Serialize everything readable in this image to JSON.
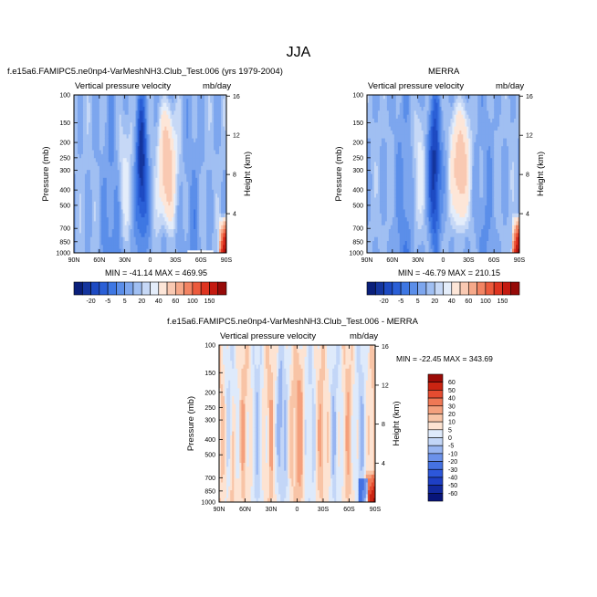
{
  "figure_title": "JJA",
  "panels": [
    {
      "title": "f.e15a6.FAMIPC5.ne0np4-VarMeshNH3.Club_Test.006 (yrs 1979-2004)",
      "left_label": "Vertical pressure velocity",
      "right_label": "mb/day",
      "ylabel": "Pressure (mb)",
      "y2label": "Height (km)",
      "minmax": "MIN = -41.14  MAX = 469.95"
    },
    {
      "title": "MERRA",
      "left_label": "Vertical pressure velocity",
      "right_label": "mb/day",
      "ylabel": "Pressure (mb)",
      "y2label": "Height (km)",
      "minmax": "MIN = -46.79  MAX = 210.15"
    },
    {
      "title": "f.e15a6.FAMIPC5.ne0np4-VarMeshNH3.Club_Test.006 - MERRA",
      "left_label": "Vertical pressure velocity",
      "right_label": "mb/day",
      "ylabel": "Pressure (mb)",
      "y2label": "Height (km)",
      "minmax": "MIN = -22.45  MAX = 343.69"
    }
  ],
  "chart_data": [
    {
      "type": "heatmap",
      "title": "f.e15a6.FAMIPC5.ne0np4-VarMeshNH3.Club_Test.006 (yrs 1979-2004)",
      "xlabel": "",
      "ylabel": "Pressure (mb)",
      "y2label": "Height (km)",
      "x_ticks": [
        "90N",
        "60N",
        "30N",
        "0",
        "30S",
        "60S",
        "90S"
      ],
      "y_ticks": [
        100,
        150,
        200,
        250,
        300,
        400,
        500,
        700,
        850,
        1000
      ],
      "y2_ticks": [
        4,
        8,
        12,
        16
      ],
      "y_log_scale": true,
      "ylim": [
        1000,
        100
      ],
      "xlim": [
        90,
        -90
      ],
      "min": -41.14,
      "max": 469.95,
      "colorbar": {
        "orientation": "horizontal",
        "labels": [
          "-20",
          "-5",
          "5",
          "20",
          "40",
          "60",
          "100",
          "150"
        ]
      }
    },
    {
      "type": "heatmap",
      "title": "MERRA",
      "xlabel": "",
      "ylabel": "Pressure (mb)",
      "y2label": "Height (km)",
      "x_ticks": [
        "90N",
        "60N",
        "30N",
        "0",
        "30S",
        "60S",
        "90S"
      ],
      "y_ticks": [
        100,
        150,
        200,
        250,
        300,
        400,
        500,
        700,
        850,
        1000
      ],
      "y2_ticks": [
        4,
        8,
        12,
        16
      ],
      "y_log_scale": true,
      "ylim": [
        1000,
        100
      ],
      "xlim": [
        90,
        -90
      ],
      "min": -46.79,
      "max": 210.15,
      "colorbar": {
        "orientation": "horizontal",
        "labels": [
          "-20",
          "-5",
          "5",
          "20",
          "40",
          "60",
          "100",
          "150"
        ]
      }
    },
    {
      "type": "heatmap",
      "title": "f.e15a6.FAMIPC5.ne0np4-VarMeshNH3.Club_Test.006 - MERRA",
      "xlabel": "",
      "ylabel": "Pressure (mb)",
      "y2label": "Height (km)",
      "x_ticks": [
        "90N",
        "60N",
        "30N",
        "0",
        "30S",
        "60S",
        "90S"
      ],
      "y_ticks": [
        100,
        150,
        200,
        250,
        300,
        400,
        500,
        700,
        850,
        1000
      ],
      "y2_ticks": [
        4,
        8,
        12,
        16
      ],
      "y_log_scale": true,
      "ylim": [
        1000,
        100
      ],
      "xlim": [
        90,
        -90
      ],
      "min": -22.45,
      "max": 343.69,
      "colorbar": {
        "orientation": "vertical",
        "labels": [
          "60",
          "50",
          "40",
          "30",
          "20",
          "10",
          "5",
          "0",
          "-5",
          "-10",
          "-20",
          "-30",
          "-40",
          "-50",
          "-60"
        ]
      }
    }
  ],
  "colors": {
    "abs_levels": [
      "#0a1f7a",
      "#14359e",
      "#1d4ac2",
      "#2a5fd6",
      "#3e77e3",
      "#5b8ee9",
      "#7da6ee",
      "#a0bff2",
      "#c6d8f6",
      "#e4edfa",
      "#fde6d8",
      "#f9c9b2",
      "#f6a98a",
      "#f28463",
      "#ec5a3c",
      "#de3420",
      "#c41a10",
      "#960a08"
    ],
    "diff_levels": [
      "#08157a",
      "#12299e",
      "#1e3fc4",
      "#2d57da",
      "#4572e3",
      "#6b91ea",
      "#98b5f1",
      "#c3d6f7",
      "#deeafb",
      "#fde3d2",
      "#f8c4a6",
      "#f4a07d",
      "#ef7855",
      "#e54c30",
      "#ca2412",
      "#9c0b07"
    ]
  }
}
